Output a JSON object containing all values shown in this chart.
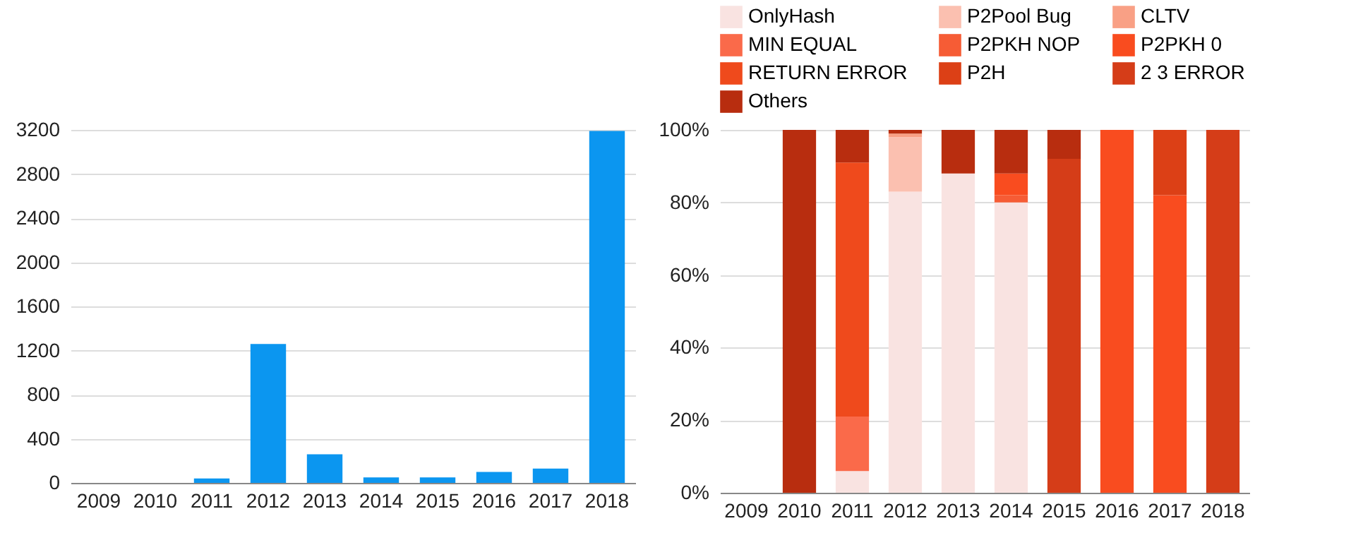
{
  "chart_data": [
    {
      "type": "bar",
      "categories": [
        "2009",
        "2010",
        "2011",
        "2012",
        "2013",
        "2014",
        "2015",
        "2016",
        "2017",
        "2018"
      ],
      "values": [
        0,
        0,
        40,
        1260,
        260,
        50,
        50,
        100,
        130,
        3190
      ],
      "color": "#0b96f0",
      "ylim": [
        0,
        3200
      ],
      "yticks": [
        0,
        400,
        800,
        1200,
        1600,
        2000,
        2400,
        2800,
        3200
      ],
      "grid": "y"
    },
    {
      "type": "bar",
      "stacked": true,
      "categories": [
        "2009",
        "2010",
        "2011",
        "2012",
        "2013",
        "2014",
        "2015",
        "2016",
        "2017",
        "2018"
      ],
      "series": [
        {
          "name": "OnlyHash",
          "color": "#f9e3e1",
          "values": [
            null,
            null,
            6,
            83,
            88,
            80,
            null,
            null,
            null,
            null
          ]
        },
        {
          "name": "P2Pool Bug",
          "color": "#fbc0b0",
          "values": [
            null,
            null,
            null,
            15,
            null,
            null,
            null,
            null,
            null,
            null
          ]
        },
        {
          "name": "CLTV",
          "color": "#f9a085",
          "values": [
            null,
            null,
            null,
            1,
            null,
            null,
            null,
            null,
            null,
            null
          ]
        },
        {
          "name": "MIN EQUAL",
          "color": "#fa6a4a",
          "values": [
            null,
            null,
            15,
            null,
            null,
            null,
            null,
            null,
            null,
            null
          ]
        },
        {
          "name": "P2PKH NOP",
          "color": "#f65c35",
          "values": [
            null,
            null,
            null,
            null,
            null,
            2,
            null,
            null,
            null,
            null
          ]
        },
        {
          "name": "P2PKH 0",
          "color": "#f94c1f",
          "values": [
            null,
            null,
            null,
            null,
            null,
            6,
            null,
            100,
            82,
            null
          ]
        },
        {
          "name": "RETURN ERROR",
          "color": "#ef4a1c",
          "values": [
            null,
            null,
            70,
            null,
            null,
            null,
            null,
            null,
            null,
            null
          ]
        },
        {
          "name": "P2H",
          "color": "#dc4016",
          "values": [
            null,
            null,
            null,
            null,
            null,
            null,
            null,
            null,
            18,
            null
          ]
        },
        {
          "name": "2 3 ERROR",
          "color": "#d53d18",
          "values": [
            null,
            null,
            null,
            null,
            null,
            null,
            92,
            null,
            null,
            100
          ]
        },
        {
          "name": "Others",
          "color": "#b82d0f",
          "values": [
            null,
            100,
            9,
            1,
            12,
            12,
            8,
            null,
            null,
            null
          ]
        }
      ],
      "ylim": [
        0,
        100
      ],
      "yticks": [
        {
          "value": 0,
          "label": "0%"
        },
        {
          "value": 20,
          "label": "20%"
        },
        {
          "value": 40,
          "label": "40%"
        },
        {
          "value": 60,
          "label": "60%"
        },
        {
          "value": 80,
          "label": "80%"
        },
        {
          "value": 100,
          "label": "100%"
        }
      ],
      "grid": "y",
      "legend": "top"
    }
  ]
}
